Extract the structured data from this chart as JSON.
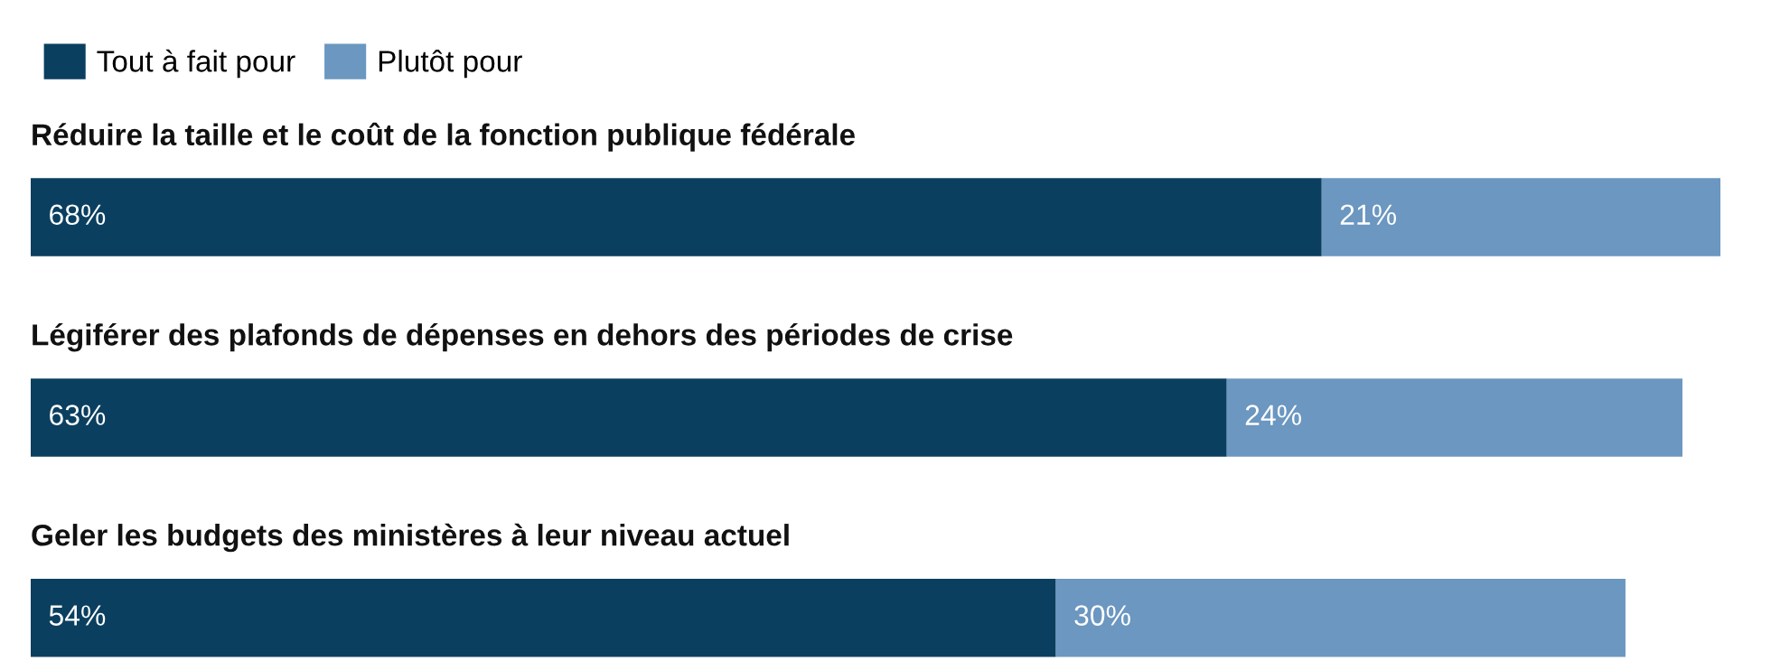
{
  "chart_data": {
    "type": "bar",
    "orientation": "horizontal",
    "stacked": true,
    "categories": [
      "Réduire la taille et le coût de la fonction publique fédérale",
      "Légiférer des plafonds de dépenses en dehors des périodes de crise",
      "Geler les budgets des ministères à leur niveau actuel"
    ],
    "series": [
      {
        "name": "Tout à fait pour",
        "color": "#0b3f5f",
        "values": [
          68,
          63,
          54
        ],
        "value_labels": [
          "68%",
          "63%",
          "54%"
        ]
      },
      {
        "name": "Plutôt pour",
        "color": "#6b97c0",
        "values": [
          21,
          24,
          30
        ],
        "value_labels": [
          "21%",
          "24%",
          "30%"
        ]
      }
    ],
    "legend": "top left"
  }
}
